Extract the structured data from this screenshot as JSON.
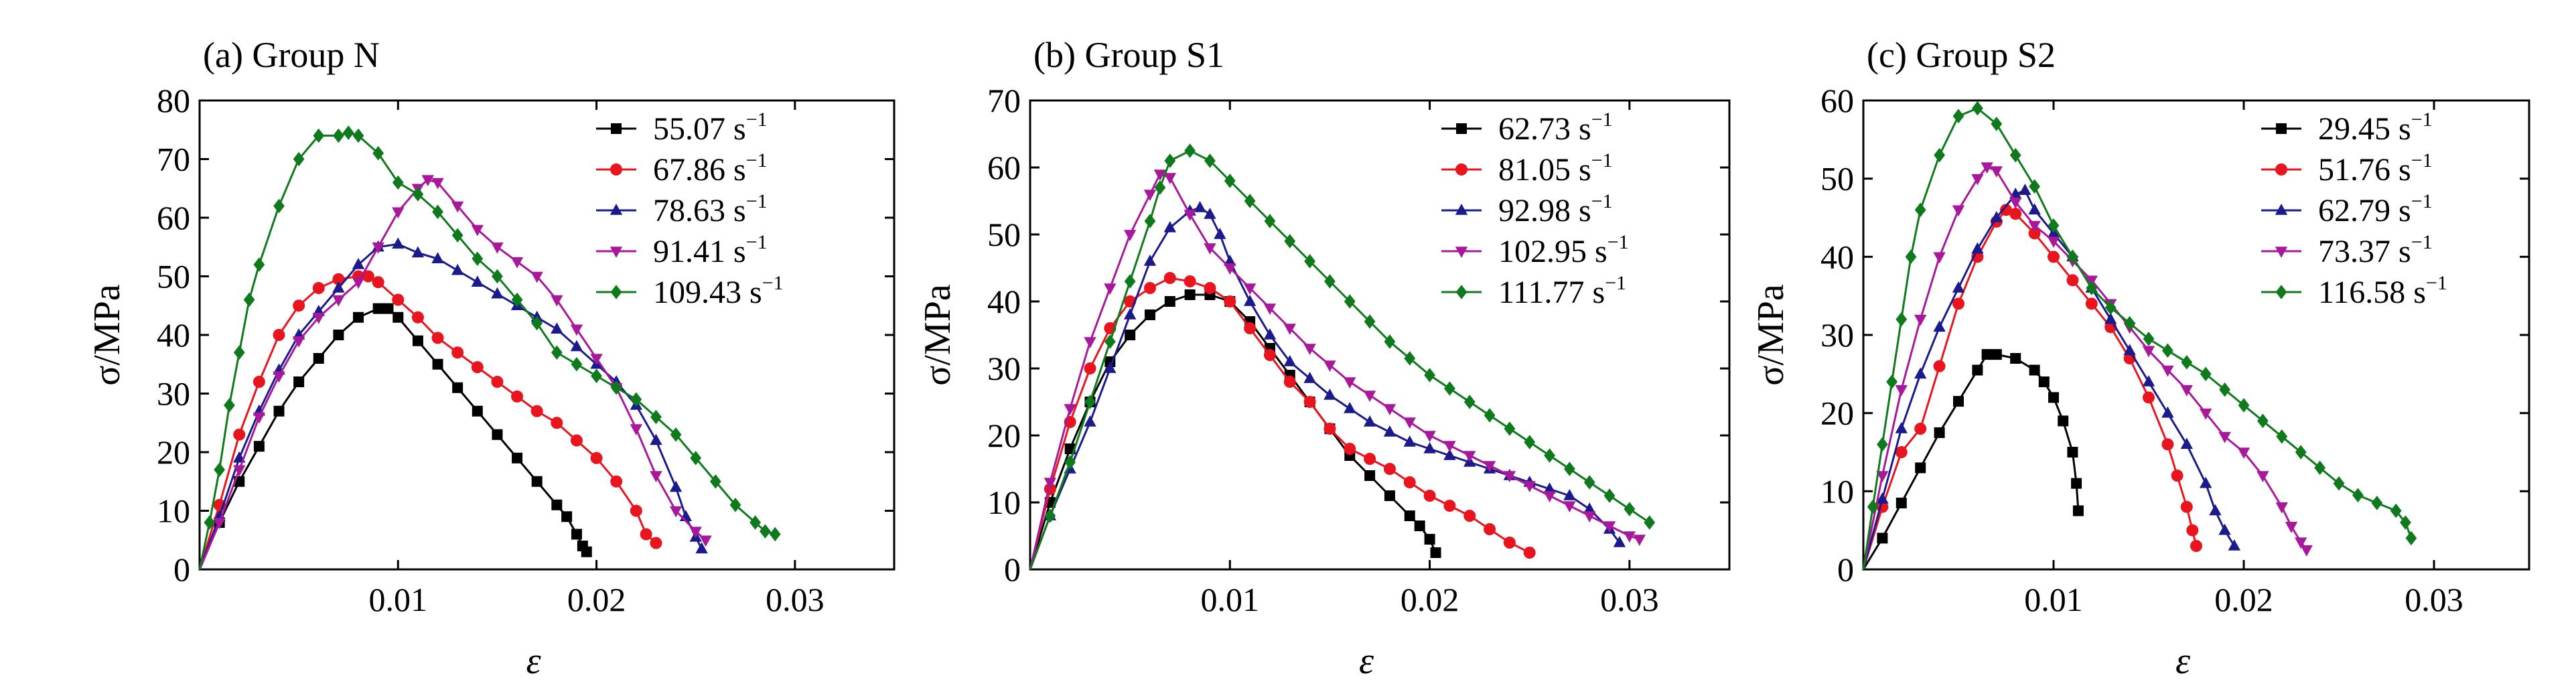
{
  "chart_data": [
    {
      "type": "line",
      "title": "(a) Group N",
      "xlabel": "ε",
      "ylabel": "σ/MPa",
      "xlim": [
        0,
        0.035
      ],
      "ylim": [
        0,
        80
      ],
      "xticks": [
        0.01,
        0.02,
        0.03
      ],
      "xtick_labels": [
        "0.01",
        "0.02",
        "0.03"
      ],
      "yticks": [
        0,
        10,
        20,
        30,
        40,
        50,
        60,
        70,
        80
      ],
      "ytick_labels": [
        "0",
        "10",
        "20",
        "30",
        "40",
        "50",
        "60",
        "70",
        "80"
      ],
      "legend_position": "top-right",
      "grid": false,
      "series": [
        {
          "name": "55.07",
          "unit": "s",
          "exp": "−1",
          "color": "#000000",
          "marker": "square",
          "x": [
            0,
            0.001,
            0.002,
            0.003,
            0.004,
            0.005,
            0.006,
            0.007,
            0.008,
            0.009,
            0.0095,
            0.01,
            0.011,
            0.012,
            0.013,
            0.014,
            0.015,
            0.016,
            0.017,
            0.018,
            0.0185,
            0.019,
            0.0193,
            0.0195
          ],
          "y": [
            0,
            8,
            15,
            21,
            27,
            32,
            36,
            40,
            43,
            44.5,
            44.5,
            43,
            39,
            35,
            31,
            27,
            23,
            19,
            15,
            11,
            9,
            6,
            4,
            3
          ]
        },
        {
          "name": "67.86",
          "unit": "s",
          "exp": "−1",
          "color": "#e8141e",
          "marker": "circle",
          "x": [
            0,
            0.001,
            0.002,
            0.003,
            0.004,
            0.005,
            0.006,
            0.007,
            0.008,
            0.0085,
            0.009,
            0.01,
            0.011,
            0.012,
            0.013,
            0.014,
            0.015,
            0.016,
            0.017,
            0.018,
            0.019,
            0.02,
            0.021,
            0.022,
            0.0225,
            0.023
          ],
          "y": [
            0,
            11,
            23,
            32,
            40,
            45,
            48,
            49.5,
            50,
            50,
            49,
            46,
            43,
            39.5,
            37,
            34.5,
            32,
            29.5,
            27,
            25,
            22,
            19,
            15,
            10,
            6,
            4.5
          ]
        },
        {
          "name": "78.63",
          "unit": "s",
          "exp": "−1",
          "color": "#1a1a8c",
          "marker": "triangle-up",
          "x": [
            0,
            0.001,
            0.002,
            0.003,
            0.004,
            0.005,
            0.006,
            0.007,
            0.008,
            0.009,
            0.01,
            0.011,
            0.012,
            0.013,
            0.014,
            0.015,
            0.016,
            0.017,
            0.018,
            0.019,
            0.02,
            0.021,
            0.022,
            0.023,
            0.024,
            0.0245,
            0.025,
            0.0253
          ],
          "y": [
            0,
            9,
            19,
            27,
            34,
            40,
            44,
            48,
            52,
            55,
            55.5,
            54,
            53,
            51,
            49,
            47,
            45,
            43,
            41,
            38,
            35,
            32,
            28,
            22,
            14,
            9,
            5.5,
            3.5
          ]
        },
        {
          "name": "91.41",
          "unit": "s",
          "exp": "−1",
          "color": "#a8189a",
          "marker": "triangle-down",
          "x": [
            0,
            0.001,
            0.002,
            0.003,
            0.004,
            0.005,
            0.006,
            0.007,
            0.008,
            0.009,
            0.01,
            0.011,
            0.0115,
            0.012,
            0.013,
            0.014,
            0.015,
            0.016,
            0.017,
            0.018,
            0.019,
            0.02,
            0.021,
            0.022,
            0.023,
            0.024,
            0.025,
            0.0255
          ],
          "y": [
            0,
            8,
            17,
            26,
            33,
            39,
            43,
            46,
            49,
            55,
            61,
            65,
            66.5,
            66,
            62,
            58,
            55,
            52.5,
            50,
            46,
            41,
            36,
            31,
            24,
            16,
            10,
            6.5,
            5
          ]
        },
        {
          "name": "109.43",
          "unit": "s",
          "exp": "−1",
          "color": "#0e7a1c",
          "marker": "diamond",
          "x": [
            0,
            0.0005,
            0.001,
            0.0015,
            0.002,
            0.0025,
            0.003,
            0.004,
            0.005,
            0.006,
            0.007,
            0.0075,
            0.008,
            0.009,
            0.01,
            0.011,
            0.012,
            0.013,
            0.014,
            0.015,
            0.016,
            0.017,
            0.018,
            0.019,
            0.02,
            0.021,
            0.022,
            0.023,
            0.024,
            0.025,
            0.026,
            0.027,
            0.028,
            0.0285,
            0.029
          ],
          "y": [
            0,
            8,
            17,
            28,
            37,
            46,
            52,
            62,
            70,
            74,
            74,
            74.5,
            74,
            71,
            66,
            64,
            61,
            57,
            53,
            50,
            46,
            42,
            37,
            35,
            33,
            31,
            29,
            26,
            23,
            19,
            15,
            11,
            8,
            6.5,
            6
          ]
        }
      ]
    },
    {
      "type": "line",
      "title": "(b) Group S1",
      "xlabel": "ε",
      "ylabel": "σ/MPa",
      "xlim": [
        0,
        0.035
      ],
      "ylim": [
        0,
        70
      ],
      "xticks": [
        0.01,
        0.02,
        0.03
      ],
      "xtick_labels": [
        "0.01",
        "0.02",
        "0.03"
      ],
      "yticks": [
        0,
        10,
        20,
        30,
        40,
        50,
        60,
        70
      ],
      "ytick_labels": [
        "0",
        "10",
        "20",
        "30",
        "40",
        "50",
        "60",
        "70"
      ],
      "legend_position": "top-right",
      "grid": false,
      "series": [
        {
          "name": "62.73",
          "unit": "s",
          "exp": "−1",
          "color": "#000000",
          "marker": "square",
          "x": [
            0,
            0.001,
            0.002,
            0.003,
            0.004,
            0.005,
            0.006,
            0.007,
            0.008,
            0.009,
            0.01,
            0.011,
            0.012,
            0.013,
            0.014,
            0.015,
            0.016,
            0.017,
            0.018,
            0.019,
            0.0195,
            0.02,
            0.0203
          ],
          "y": [
            0,
            10,
            18,
            25,
            31,
            35,
            38,
            40,
            41,
            41,
            40,
            37,
            33,
            29,
            25,
            21,
            17,
            14,
            11,
            8,
            6.5,
            4.5,
            2.5
          ]
        },
        {
          "name": "81.05",
          "unit": "s",
          "exp": "−1",
          "color": "#e8141e",
          "marker": "circle",
          "x": [
            0,
            0.001,
            0.002,
            0.003,
            0.004,
            0.005,
            0.006,
            0.007,
            0.008,
            0.009,
            0.01,
            0.011,
            0.012,
            0.013,
            0.014,
            0.015,
            0.016,
            0.017,
            0.018,
            0.019,
            0.02,
            0.021,
            0.022,
            0.023,
            0.024,
            0.025
          ],
          "y": [
            0,
            12,
            22,
            30,
            36,
            40,
            42,
            43.5,
            43,
            42,
            40,
            36,
            32,
            28,
            25,
            21,
            18,
            16.5,
            15,
            13,
            11,
            9.5,
            8,
            6,
            4,
            2.5
          ]
        },
        {
          "name": "92.98",
          "unit": "s",
          "exp": "−1",
          "color": "#1a1a8c",
          "marker": "triangle-up",
          "x": [
            0,
            0.001,
            0.002,
            0.003,
            0.004,
            0.005,
            0.006,
            0.007,
            0.008,
            0.0085,
            0.009,
            0.0095,
            0.01,
            0.011,
            0.012,
            0.013,
            0.014,
            0.015,
            0.016,
            0.017,
            0.018,
            0.019,
            0.02,
            0.021,
            0.022,
            0.023,
            0.024,
            0.025,
            0.026,
            0.027,
            0.028,
            0.029,
            0.0295
          ],
          "y": [
            0,
            8,
            15,
            22,
            30,
            38,
            46,
            51,
            53.5,
            54,
            53,
            50,
            46,
            40,
            35,
            31,
            28.5,
            26,
            24,
            22,
            20.5,
            19,
            18,
            17,
            16,
            15,
            14,
            13,
            12,
            11,
            9,
            6,
            4
          ]
        },
        {
          "name": "102.95",
          "unit": "s",
          "exp": "−1",
          "color": "#a8189a",
          "marker": "triangle-down",
          "x": [
            0,
            0.001,
            0.002,
            0.003,
            0.004,
            0.005,
            0.006,
            0.0065,
            0.007,
            0.008,
            0.009,
            0.01,
            0.011,
            0.012,
            0.013,
            0.014,
            0.015,
            0.016,
            0.017,
            0.018,
            0.019,
            0.02,
            0.021,
            0.022,
            0.023,
            0.024,
            0.025,
            0.026,
            0.027,
            0.028,
            0.029,
            0.03,
            0.0305
          ],
          "y": [
            0,
            13,
            24,
            34,
            42,
            50,
            56,
            59,
            58.5,
            53,
            48,
            45,
            42,
            39,
            36,
            33,
            30.5,
            28,
            26,
            24,
            22,
            20,
            18.5,
            17,
            15.5,
            14,
            12.5,
            11,
            9.5,
            8,
            6.5,
            5,
            4.5
          ]
        },
        {
          "name": "111.77",
          "unit": "s",
          "exp": "−1",
          "color": "#0e7a1c",
          "marker": "diamond",
          "x": [
            0,
            0.001,
            0.002,
            0.003,
            0.004,
            0.005,
            0.006,
            0.0065,
            0.007,
            0.008,
            0.009,
            0.01,
            0.011,
            0.012,
            0.013,
            0.014,
            0.015,
            0.016,
            0.017,
            0.018,
            0.019,
            0.02,
            0.021,
            0.022,
            0.023,
            0.024,
            0.025,
            0.026,
            0.027,
            0.028,
            0.029,
            0.03,
            0.031
          ],
          "y": [
            0,
            8,
            16,
            25,
            34,
            43,
            52,
            57,
            61,
            62.5,
            61,
            58,
            55,
            52,
            49,
            46,
            43,
            40,
            37,
            34,
            31.5,
            29,
            27,
            25,
            23,
            21,
            19,
            17,
            15,
            13,
            11,
            9,
            7
          ]
        }
      ]
    },
    {
      "type": "line",
      "title": "(c) Group S2",
      "xlabel": "ε",
      "ylabel": "σ/MPa",
      "xlim": [
        0,
        0.035
      ],
      "ylim": [
        0,
        60
      ],
      "xticks": [
        0.01,
        0.02,
        0.03
      ],
      "xtick_labels": [
        "0.01",
        "0.02",
        "0.03"
      ],
      "yticks": [
        0,
        10,
        20,
        30,
        40,
        50,
        60
      ],
      "ytick_labels": [
        "0",
        "10",
        "20",
        "30",
        "40",
        "50",
        "60"
      ],
      "legend_position": "top-right",
      "grid": false,
      "series": [
        {
          "name": "29.45",
          "unit": "s",
          "exp": "−1",
          "color": "#000000",
          "marker": "square",
          "x": [
            0,
            0.001,
            0.002,
            0.003,
            0.004,
            0.005,
            0.006,
            0.0065,
            0.007,
            0.008,
            0.009,
            0.0095,
            0.01,
            0.0105,
            0.011,
            0.0112,
            0.0113
          ],
          "y": [
            0,
            4,
            8.5,
            13,
            17.5,
            21.5,
            25.5,
            27.5,
            27.5,
            27,
            25.5,
            24,
            22,
            19,
            15,
            11,
            7.5
          ]
        },
        {
          "name": "51.76",
          "unit": "s",
          "exp": "−1",
          "color": "#e8141e",
          "marker": "circle",
          "x": [
            0,
            0.001,
            0.002,
            0.003,
            0.004,
            0.005,
            0.006,
            0.007,
            0.0075,
            0.008,
            0.009,
            0.01,
            0.011,
            0.012,
            0.013,
            0.014,
            0.015,
            0.016,
            0.0165,
            0.017,
            0.0173,
            0.0175
          ],
          "y": [
            0,
            8,
            15,
            18,
            26,
            34,
            40,
            44.5,
            46,
            45.5,
            43,
            40,
            37,
            34,
            31,
            27,
            22,
            16,
            12,
            8,
            5,
            3
          ]
        },
        {
          "name": "62.79",
          "unit": "s",
          "exp": "−1",
          "color": "#1a1a8c",
          "marker": "triangle-up",
          "x": [
            0,
            0.001,
            0.002,
            0.003,
            0.004,
            0.005,
            0.006,
            0.007,
            0.008,
            0.0085,
            0.009,
            0.01,
            0.011,
            0.012,
            0.013,
            0.014,
            0.015,
            0.016,
            0.017,
            0.018,
            0.0185,
            0.019,
            0.0195
          ],
          "y": [
            0,
            9,
            18,
            25,
            31,
            36,
            41,
            45,
            48,
            48.5,
            46,
            43,
            40,
            36,
            32,
            28,
            24,
            20,
            16,
            11,
            7.5,
            5,
            3
          ]
        },
        {
          "name": "73.37",
          "unit": "s",
          "exp": "−1",
          "color": "#a8189a",
          "marker": "triangle-down",
          "x": [
            0,
            0.001,
            0.002,
            0.003,
            0.004,
            0.005,
            0.006,
            0.0065,
            0.007,
            0.008,
            0.009,
            0.01,
            0.011,
            0.012,
            0.013,
            0.014,
            0.015,
            0.016,
            0.017,
            0.018,
            0.019,
            0.02,
            0.021,
            0.022,
            0.0225,
            0.023,
            0.0233
          ],
          "y": [
            0,
            12,
            23,
            32,
            40,
            46,
            50,
            51.5,
            51,
            47,
            44,
            42,
            39.5,
            37,
            34,
            31,
            28,
            25.5,
            23,
            20,
            17,
            15,
            12,
            8,
            5.5,
            3.5,
            2.5
          ]
        },
        {
          "name": "116.58",
          "unit": "s",
          "exp": "−1",
          "color": "#0e7a1c",
          "marker": "diamond",
          "x": [
            0,
            0.0005,
            0.001,
            0.0015,
            0.002,
            0.0025,
            0.003,
            0.004,
            0.005,
            0.006,
            0.007,
            0.008,
            0.009,
            0.01,
            0.011,
            0.012,
            0.013,
            0.014,
            0.015,
            0.016,
            0.017,
            0.018,
            0.019,
            0.02,
            0.021,
            0.022,
            0.023,
            0.024,
            0.025,
            0.026,
            0.027,
            0.028,
            0.0285,
            0.0288
          ],
          "y": [
            0,
            8,
            16,
            24,
            32,
            40,
            46,
            53,
            58,
            59,
            57,
            53,
            49,
            44,
            40,
            36,
            33.5,
            31.5,
            29.5,
            28,
            26.5,
            25,
            23,
            21,
            19,
            17,
            15,
            13,
            11,
            9.5,
            8.5,
            7.5,
            6,
            4
          ]
        }
      ]
    }
  ]
}
